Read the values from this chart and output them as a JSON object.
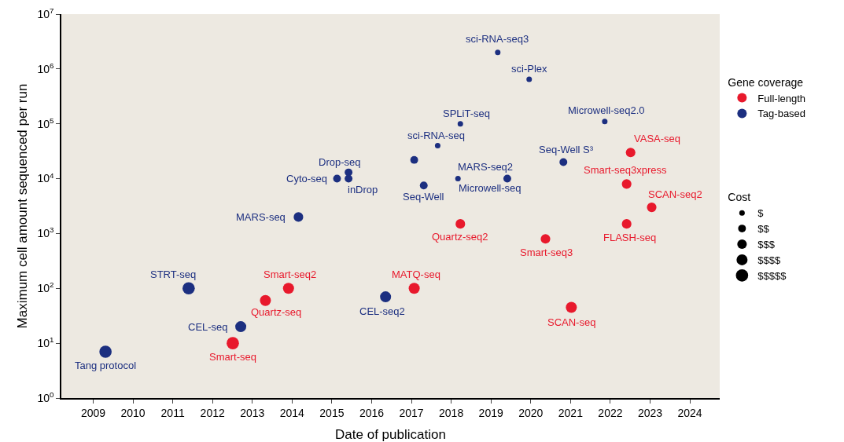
{
  "chart_data": {
    "type": "bubble",
    "xlabel": "Date of publication",
    "ylabel": "Maximum cell amount sequenced per run",
    "legend_title": "Gene coverage",
    "log": "y",
    "grid": false,
    "legend": "right",
    "marker": "circle",
    "xlim": [
      2008.2,
      2024.75
    ],
    "xticks": [
      2009,
      2010,
      2011,
      2012,
      2013,
      2014,
      2015,
      2016,
      2017,
      2018,
      2019,
      2020,
      2021,
      2022,
      2023,
      2024
    ],
    "ylim": [
      1,
      10000000
    ],
    "yticks": [
      {
        "value": 1,
        "label": "10$^{0}$"
      },
      {
        "value": 10,
        "label": "10$^{1}$"
      },
      {
        "value": 100,
        "label": "10$^{2}$"
      },
      {
        "value": 1000,
        "label": "10$^{3}$"
      },
      {
        "value": 10000,
        "label": "10$^{4}$"
      },
      {
        "value": 100000,
        "label": "10$^{5}$"
      },
      {
        "value": 1000000,
        "label": "10$^{6}$"
      },
      {
        "value": 10000000,
        "label": "10$^{7}$"
      }
    ],
    "size_legend": [
      {
        "value": 1,
        "label": "$"
      },
      {
        "value": 2,
        "label": "$$"
      },
      {
        "value": 3,
        "label": "$$$"
      },
      {
        "value": 4,
        "label": "$$$$"
      },
      {
        "value": 5,
        "label": "$$$$$"
      }
    ],
    "series": [
      {
        "name": "Full-length",
        "color": "#e8192c",
        "x": [
          2012.51,
          2013.33,
          2013.91,
          2017.07,
          2018.23,
          2020.37,
          2021.02,
          2022.51,
          2022.41,
          2022.41,
          2023.04
        ],
        "values": [
          10,
          60,
          100,
          100,
          1500,
          800,
          45,
          30000,
          8000,
          1500,
          3000
        ],
        "sizes": [
          5,
          4,
          4,
          4,
          3,
          3,
          4,
          3,
          3,
          3,
          3
        ]
      },
      {
        "name": "Tag-based",
        "color": "#1c2f80",
        "x": [
          2009.31,
          2011.4,
          2012.71,
          2014.16,
          2015.13,
          2015.42,
          2015.42,
          2016.35,
          2017.07,
          2017.31,
          2017.66,
          2018.23,
          2018.17,
          2019.17,
          2019.96,
          2019.41,
          2020.82,
          2021.86
        ],
        "values": [
          7,
          100,
          20,
          2000,
          10000,
          13000,
          10000,
          70,
          22000,
          7500,
          40000,
          100000,
          10000,
          2000000,
          650000,
          10000,
          20000,
          110000
        ],
        "sizes": [
          5,
          5,
          4,
          3,
          2,
          2,
          2,
          4,
          2,
          2,
          1,
          1,
          1,
          1,
          1,
          2,
          2,
          1
        ]
      }
    ],
    "annotations": [
      {
        "text": "Tang protocol",
        "x": 2009.31,
        "y": 7
      },
      {
        "text": "STRT-seq",
        "x": 2011.4,
        "y": 100
      },
      {
        "text": "CEL-seq",
        "x": 2012.71,
        "y": 20
      },
      {
        "text": "Smart-seq",
        "x": 2012.51,
        "y": 10
      },
      {
        "text": "Quartz-seq",
        "x": 2013.33,
        "y": 60
      },
      {
        "text": "Smart-seq2",
        "x": 2013.91,
        "y": 100
      },
      {
        "text": "MARS-seq",
        "x": 2014.16,
        "y": 2000
      },
      {
        "text": "Cyto-seq",
        "x": 2015.13,
        "y": 10000
      },
      {
        "text": "Drop-seq",
        "x": 2015.42,
        "y": 13000
      },
      {
        "text": "inDrop",
        "x": 2015.42,
        "y": 10000
      },
      {
        "text": "CEL-seq2",
        "x": 2016.35,
        "y": 70
      },
      {
        "text": "MATQ-seq",
        "x": 2017.07,
        "y": 100
      },
      {
        "text": "Seq-Well",
        "x": 2017.31,
        "y": 7500
      },
      {
        "text": "sci-RNA-seq",
        "x": 2017.66,
        "y": 40000
      },
      {
        "text": "SPLiT-seq",
        "x": 2018.23,
        "y": 100000
      },
      {
        "text": "Microwell-seq",
        "x": 2018.17,
        "y": 10000
      },
      {
        "text": "Quartz-seq2",
        "x": 2018.23,
        "y": 1500
      },
      {
        "text": "sci-RNA-seq3",
        "x": 2019.17,
        "y": 2000000
      },
      {
        "text": "sci-Plex",
        "x": 2019.96,
        "y": 650000
      },
      {
        "text": "MARS-seq2",
        "x": 2019.41,
        "y": 10000
      },
      {
        "text": "Smart-seq3",
        "x": 2020.37,
        "y": 800
      },
      {
        "text": "Seq-Well S³",
        "x": 2020.82,
        "y": 20000
      },
      {
        "text": "SCAN-seq",
        "x": 2021.02,
        "y": 45
      },
      {
        "text": "Microwell-seq2.0",
        "x": 2021.86,
        "y": 110000
      },
      {
        "text": "VASA-seq",
        "x": 2022.51,
        "y": 30000
      },
      {
        "text": "Smart-seq3xpress",
        "x": 2022.41,
        "y": 8000
      },
      {
        "text": "FLASH-seq",
        "x": 2022.41,
        "y": 1500
      },
      {
        "text": "SCAN-seq2",
        "x": 2023.04,
        "y": 3000
      },
      "Cost"
    ]
  }
}
